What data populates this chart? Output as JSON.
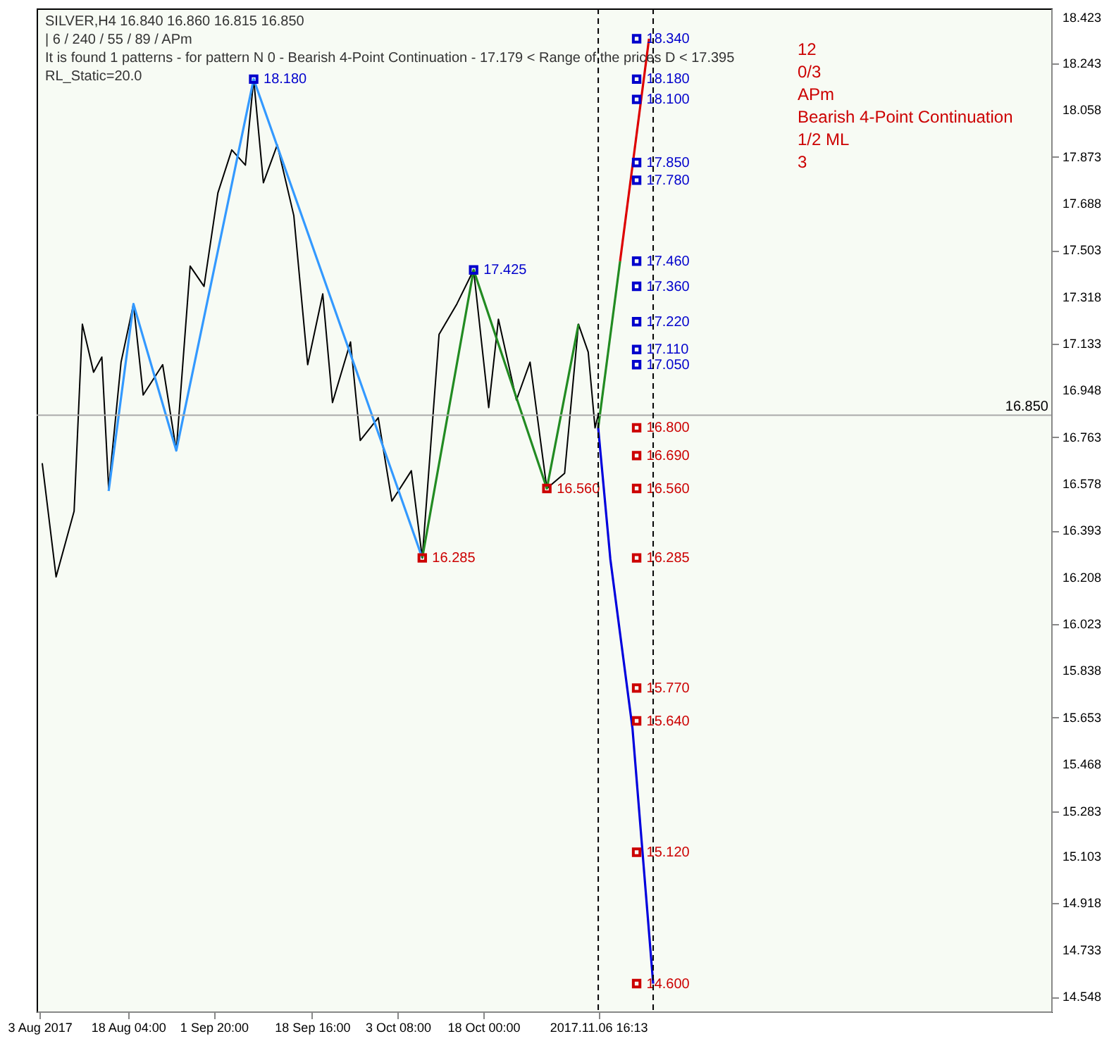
{
  "chart_data": {
    "type": "line",
    "annotations": [
      "SILVER,H4  16.840 16.860 16.815 16.850",
      "| 6 / 240 / 55 / 89 / APm",
      "It is found 1 patterns  -  for pattern N 0 - Bearish 4-Point Continuation - 17.179 < Range of the prices D < 17.395",
      "RL_Static=20.0",
      "12",
      "0/3",
      "APm",
      "Bearish 4-Point Continuation",
      "1/2 ML",
      "3"
    ],
    "xlim": [
      "2017-08-02T12:00",
      "2018-01-23T06:00"
    ],
    "ylim": [
      14.49,
      18.46
    ],
    "xticks": [
      {
        "value": "2017-08-03T00:00",
        "label": "3 Aug 2017"
      },
      {
        "value": "2017-08-18T04:00",
        "label": "18 Aug 04:00"
      },
      {
        "value": "2017-09-01T20:00",
        "label": "1 Sep 20:00"
      },
      {
        "value": "2017-09-18T16:00",
        "label": "18 Sep 16:00"
      },
      {
        "value": "2017-10-03T08:00",
        "label": "3 Oct 08:00"
      },
      {
        "value": "2017-10-18T00:00",
        "label": "18 Oct 00:00"
      },
      {
        "value": "2017-11-06T16:13",
        "label": "2017.11.06 16:13"
      }
    ],
    "yticks": [
      18.423,
      18.243,
      18.058,
      17.873,
      17.688,
      17.503,
      17.318,
      17.133,
      16.948,
      16.763,
      16.578,
      16.393,
      16.208,
      16.023,
      15.838,
      15.653,
      15.468,
      15.283,
      15.103,
      14.918,
      14.733,
      14.548
    ],
    "ref_lines": [
      {
        "axis": "y",
        "value": 16.85,
        "label": "16.850",
        "color": "#aaaaaa"
      },
      {
        "axis": "x",
        "value": "2017-11-06T16:13",
        "label": null,
        "color": "#000000",
        "line_style": "dashed"
      },
      {
        "axis": "x",
        "value": "2017-11-16T02:00",
        "label": null,
        "color": "#000000",
        "line_style": "dashed"
      }
    ],
    "series": [
      {
        "color": "#000000",
        "x": [
          "2017-08-03T11:00",
          "2017-08-05T20:00",
          "2017-08-08T22:00",
          "2017-08-10T08:00",
          "2017-08-12T06:00",
          "2017-08-13T16:00",
          "2017-08-14T20:00",
          "2017-08-16T23:00",
          "2017-08-19T02:00",
          "2017-08-20T18:00",
          "2017-08-24T02:00",
          "2017-08-26T10:00",
          "2017-08-28T19:00",
          "2017-08-31T04:00",
          "2017-09-02T13:00",
          "2017-09-04T22:00",
          "2017-09-07T06:00",
          "2017-09-08T16:00",
          "2017-09-10T08:00",
          "2017-09-12T17:00",
          "2017-09-15T13:00",
          "2017-09-17T22:00",
          "2017-09-20T12:00",
          "2017-09-22T04:00",
          "2017-09-25T06:00",
          "2017-09-26T22:00",
          "2017-09-30T00:00",
          "2017-10-02T08:00",
          "2017-10-05T16:00",
          "2017-10-07T13:00",
          "2017-10-10T10:00",
          "2017-10-13T11:00",
          "2017-10-16T08:00",
          "2017-10-18T22:00",
          "2017-10-20T14:00",
          "2017-10-23T16:00",
          "2017-10-26T00:00",
          "2017-10-28T21:00",
          "2017-10-31T22:00",
          "2017-11-03T07:00",
          "2017-11-04T23:00",
          "2017-11-06T03:00",
          "2017-11-06T16:00"
        ],
        "values": [
          16.66,
          16.21,
          16.47,
          17.21,
          17.02,
          17.08,
          16.56,
          17.06,
          17.29,
          16.93,
          17.05,
          16.71,
          17.44,
          17.36,
          17.73,
          17.9,
          17.84,
          18.18,
          17.77,
          17.92,
          17.64,
          17.05,
          17.33,
          16.9,
          17.14,
          16.75,
          16.84,
          16.51,
          16.63,
          16.285,
          17.17,
          17.29,
          17.425,
          16.88,
          17.23,
          16.91,
          17.06,
          16.56,
          16.62,
          17.21,
          17.1,
          16.8,
          16.85
        ]
      },
      {
        "color": "#3399ff",
        "x": [
          "2017-08-14T20:00",
          "2017-08-19T02:00",
          "2017-08-26T10:00",
          "2017-09-08T16:00",
          "2017-10-07T13:00"
        ],
        "values": [
          16.55,
          17.29,
          16.71,
          18.18,
          16.285
        ]
      },
      {
        "color": "#228b22",
        "x": [
          "2017-10-07T13:00",
          "2017-10-16T08:00",
          "2017-10-28T21:00",
          "2017-11-03T07:00"
        ],
        "values": [
          16.285,
          17.425,
          16.56,
          17.21
        ]
      },
      {
        "color": "#228b22",
        "x": [
          "2017-11-06T16:00",
          "2017-11-10T10:00"
        ],
        "values": [
          16.8,
          17.46
        ]
      },
      {
        "color": "#dd0000",
        "x": [
          "2017-11-10T10:00",
          "2017-11-15T09:00"
        ],
        "values": [
          17.46,
          18.34
        ]
      },
      {
        "color": "#0000dd",
        "x": [
          "2017-11-06T16:00",
          "2017-11-08T18:00",
          "2017-11-12T13:00",
          "2017-11-16T02:00"
        ],
        "values": [
          16.8,
          16.28,
          15.61,
          14.6
        ]
      },
      {
        "type": "scatter",
        "color": "#0000cc",
        "marker": "square",
        "x": [
          "2017-09-08T16:00",
          "2017-10-16T08:00",
          "2017-11-13T06:00",
          "2017-11-13T06:00",
          "2017-11-13T06:00",
          "2017-11-13T06:00",
          "2017-11-13T06:00",
          "2017-11-13T06:00",
          "2017-11-13T06:00",
          "2017-11-13T06:00",
          "2017-11-13T06:00",
          "2017-11-13T06:00"
        ],
        "values": [
          18.18,
          17.425,
          18.34,
          18.18,
          18.1,
          17.85,
          17.78,
          17.46,
          17.36,
          17.22,
          17.11,
          17.05
        ],
        "value_labels": [
          "18.180",
          "17.425",
          "18.340",
          "18.180",
          "18.100",
          "17.850",
          "17.780",
          "17.460",
          "17.360",
          "17.220",
          "17.110",
          "17.050"
        ]
      },
      {
        "type": "scatter",
        "color": "#cc0000",
        "marker": "square",
        "x": [
          "2017-10-07T13:00",
          "2017-10-28T21:00",
          "2017-11-13T06:00",
          "2017-11-13T06:00",
          "2017-11-13T06:00",
          "2017-11-13T06:00",
          "2017-11-13T06:00",
          "2017-11-13T06:00",
          "2017-11-13T06:00",
          "2017-11-13T06:00"
        ],
        "values": [
          16.285,
          16.56,
          16.8,
          16.69,
          16.56,
          16.285,
          15.77,
          15.64,
          15.12,
          14.6
        ],
        "value_labels": [
          "16.285",
          "16.560",
          "16.800",
          "16.690",
          "16.560",
          "16.285",
          "15.770",
          "15.640",
          "15.120",
          "14.600"
        ]
      }
    ]
  }
}
